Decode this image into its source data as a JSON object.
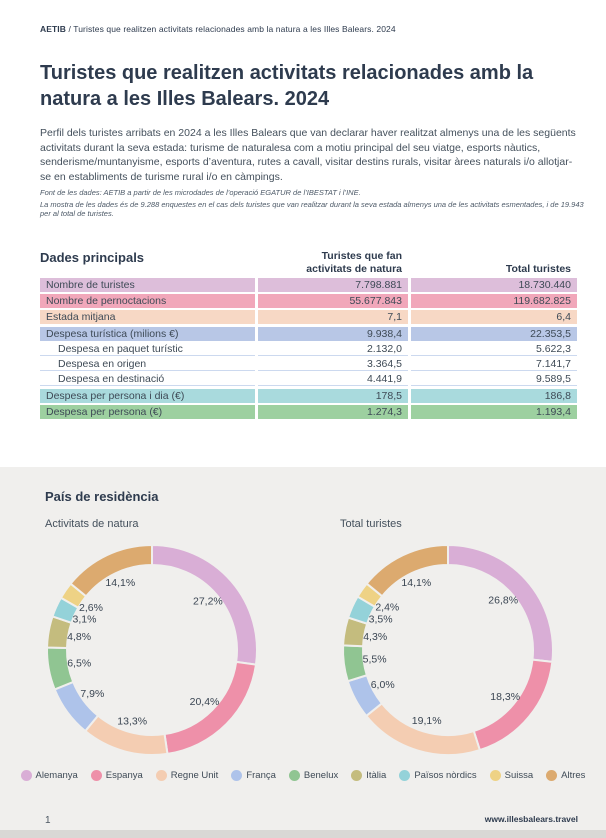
{
  "breadcrumb": {
    "brand": "AETIB",
    "separator": " / ",
    "page": "Turistes que realitzen activitats relacionades amb la natura a les Illes Balears. 2024"
  },
  "title": "Turistes que realitzen activitats relacionades amb la natura a les Illes Balears. 2024",
  "intro": "Perfil dels turistes arribats en 2024 a les Illes Balears que van declarar haver realitzat almenys una de les següents activitats durant la seva estada: turisme de naturalesa com a motiu principal del seu viatge, esports nàutics, senderisme/muntanyisme, esports d’aventura, rutes a cavall, visitar destins rurals, visitar àrees naturals i/o allotjar-se en establiments de turisme rural i/o en càmpings.",
  "source_note": "Font de les dades: AETIB a partir de les microdades de l’operació EGATUR de l’IBESTAT i l’INE.",
  "sample_note": "La mostra de les dades és de 9.288 enquestes en el cas dels turistes que van realitzar durant la seva estada almenys una de les activitats esmentades, i de 19.943 per al total de turistes.",
  "table": {
    "section_title": "Dades principals",
    "col1_header_line1": "Turistes que fan",
    "col1_header_line2": "activitats de natura",
    "col2_header": "Total turistes",
    "rows": [
      {
        "label": "Nombre de turistes",
        "natura": "7.798.881",
        "total": "18.730.440",
        "color": "#ddbeda",
        "indent": false
      },
      {
        "label": "Nombre de pernoctacions",
        "natura": "55.677.843",
        "total": "119.682.825",
        "color": "#f1a7ba",
        "indent": false
      },
      {
        "label": "Estada mitjana",
        "natura": "7,1",
        "total": "6,4",
        "color": "#f7d8c5",
        "indent": false
      },
      {
        "label": "Despesa turística (milions €)",
        "natura": "9.938,4",
        "total": "22.353,5",
        "color": "#b8c7e6",
        "indent": false
      },
      {
        "label": "Despesa en paquet turístic",
        "natura": "2.132,0",
        "total": "5.622,3",
        "color": "#ffffff",
        "indent": true
      },
      {
        "label": "Despesa en origen",
        "natura": "3.364,5",
        "total": "7.141,7",
        "color": "#ffffff",
        "indent": true
      },
      {
        "label": "Despesa en destinació",
        "natura": "4.441,9",
        "total": "9.589,5",
        "color": "#ffffff",
        "indent": true
      },
      {
        "label": "Despesa per persona i dia (€)",
        "natura": "178,5",
        "total": "186,8",
        "color": "#a9dadd",
        "indent": false
      },
      {
        "label": "Despesa per persona (€)",
        "natura": "1.274,3",
        "total": "1.193,4",
        "color": "#9dd0a0",
        "indent": false
      }
    ]
  },
  "residence": {
    "section_title": "País de residència",
    "legend": [
      {
        "label": "Alemanya",
        "color": "#d9aed6"
      },
      {
        "label": "Espanya",
        "color": "#ee90a9"
      },
      {
        "label": "Regne Unit",
        "color": "#f4cdb2"
      },
      {
        "label": "França",
        "color": "#aec3ea"
      },
      {
        "label": "Benelux",
        "color": "#90c592"
      },
      {
        "label": "Itàlia",
        "color": "#c4bc7e"
      },
      {
        "label": "Països nòrdics",
        "color": "#94d2d9"
      },
      {
        "label": "Suissa",
        "color": "#eed285"
      },
      {
        "label": "Altres",
        "color": "#dcaa6f"
      }
    ]
  },
  "chart_data": [
    {
      "type": "pie",
      "donut": true,
      "title": "Activitats de natura",
      "categories": [
        "Alemanya",
        "Espanya",
        "Regne Unit",
        "França",
        "Benelux",
        "Itàlia",
        "Països nòrdics",
        "Suissa",
        "Altres"
      ],
      "values": [
        27.2,
        20.4,
        13.3,
        7.9,
        6.5,
        4.8,
        3.1,
        2.6,
        14.1
      ],
      "value_labels": [
        "27,2%",
        "20,4%",
        "13,3%",
        "7,9%",
        "6,5%",
        "4,8%",
        "3,1%",
        "2,6%",
        "14,1%"
      ],
      "colors": [
        "#d9aed6",
        "#ee90a9",
        "#f4cdb2",
        "#aec3ea",
        "#90c592",
        "#c4bc7e",
        "#94d2d9",
        "#eed285",
        "#dcaa6f"
      ],
      "start_angle_deg": 0,
      "direction": "clockwise",
      "legend_position": "bottom"
    },
    {
      "type": "pie",
      "donut": true,
      "title": "Total turistes",
      "categories": [
        "Alemanya",
        "Espanya",
        "Regne Unit",
        "França",
        "Benelux",
        "Itàlia",
        "Països nòrdics",
        "Suissa",
        "Altres"
      ],
      "values": [
        26.8,
        18.3,
        19.1,
        6.0,
        5.5,
        4.3,
        3.5,
        2.4,
        14.1
      ],
      "value_labels": [
        "26,8%",
        "18,3%",
        "19,1%",
        "6,0%",
        "5,5%",
        "4,3%",
        "3,5%",
        "2,4%",
        "14,1%"
      ],
      "colors": [
        "#d9aed6",
        "#ee90a9",
        "#f4cdb2",
        "#aec3ea",
        "#90c592",
        "#c4bc7e",
        "#94d2d9",
        "#eed285",
        "#dcaa6f"
      ],
      "start_angle_deg": 0,
      "direction": "clockwise",
      "legend_position": "bottom"
    }
  ],
  "footer": {
    "page_number": "1",
    "website": "www.illesbalears.travel"
  }
}
